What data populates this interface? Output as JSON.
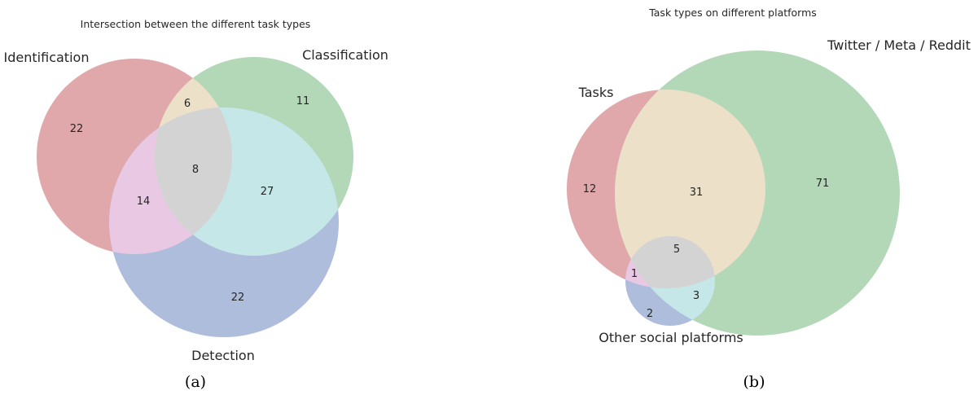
{
  "panels": [
    {
      "title": "Intersection between the different task types",
      "caption": "(a)",
      "sets": [
        {
          "name": "Identification",
          "color": "#e0a8ab"
        },
        {
          "name": "Classification",
          "color": "#b3d8b8"
        },
        {
          "name": "Detection",
          "color": "#aebddc"
        }
      ],
      "regions": [
        {
          "sets": [
            "Identification"
          ],
          "value": "22"
        },
        {
          "sets": [
            "Classification"
          ],
          "value": "11"
        },
        {
          "sets": [
            "Detection"
          ],
          "value": "22"
        },
        {
          "sets": [
            "Identification",
            "Classification"
          ],
          "value": "6"
        },
        {
          "sets": [
            "Identification",
            "Detection"
          ],
          "value": "14"
        },
        {
          "sets": [
            "Classification",
            "Detection"
          ],
          "value": "27"
        },
        {
          "sets": [
            "Identification",
            "Classification",
            "Detection"
          ],
          "value": "8"
        }
      ],
      "region_colors": {
        "ic": "#ece0c8",
        "id": "#e8c8e2",
        "cd": "#c6e7e7",
        "icd": "#d3d3d3"
      }
    },
    {
      "title": "Task types on different platforms",
      "caption": "(b)",
      "sets": [
        {
          "name": "Tasks",
          "color": "#e0a8ab"
        },
        {
          "name": "Twitter / Meta / Reddit",
          "color": "#b3d8b8"
        },
        {
          "name": "Other social platforms",
          "color": "#aebddc"
        }
      ],
      "regions": [
        {
          "sets": [
            "Tasks"
          ],
          "value": "12"
        },
        {
          "sets": [
            "Twitter / Meta / Reddit"
          ],
          "value": "71"
        },
        {
          "sets": [
            "Other social platforms"
          ],
          "value": "2"
        },
        {
          "sets": [
            "Tasks",
            "Twitter / Meta / Reddit"
          ],
          "value": "31"
        },
        {
          "sets": [
            "Tasks",
            "Other social platforms"
          ],
          "value": "1"
        },
        {
          "sets": [
            "Twitter / Meta / Reddit",
            "Other social platforms"
          ],
          "value": "3"
        },
        {
          "sets": [
            "Tasks",
            "Twitter / Meta / Reddit",
            "Other social platforms"
          ],
          "value": "5"
        }
      ],
      "region_colors": {
        "ic": "#ece0c8",
        "id": "#e8c8e2",
        "cd": "#c6e7e7",
        "icd": "#d3d3d3"
      }
    }
  ]
}
